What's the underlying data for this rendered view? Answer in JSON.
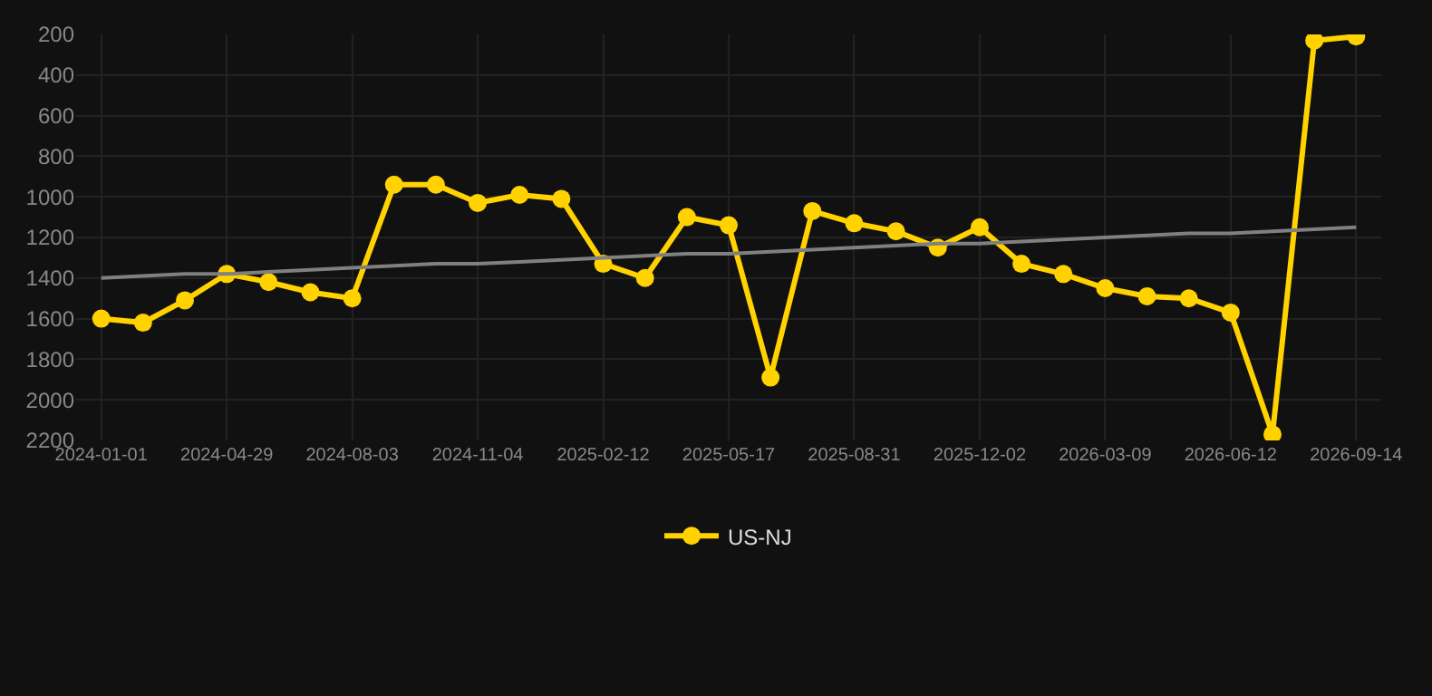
{
  "chart_data": {
    "type": "line",
    "categories": [
      "2024-01-01",
      null,
      null,
      "2024-04-29",
      null,
      null,
      "2024-08-03",
      null,
      null,
      "2024-11-04",
      null,
      null,
      "2025-02-12",
      null,
      null,
      "2025-05-17",
      null,
      null,
      "2025-08-31",
      null,
      null,
      "2025-12-02",
      null,
      null,
      "2026-03-09",
      null,
      null,
      "2026-06-12",
      null,
      null,
      "2026-09-14"
    ],
    "series": [
      {
        "name": "US-NJ",
        "color": "#ffd200",
        "values": [
          1600,
          1620,
          1510,
          1380,
          1420,
          1470,
          1500,
          940,
          940,
          1030,
          990,
          1010,
          1330,
          1400,
          1100,
          1140,
          1890,
          1070,
          1130,
          1170,
          1250,
          1150,
          1330,
          1380,
          1450,
          1490,
          1500,
          1570,
          2170,
          230,
          210
        ]
      },
      {
        "color": "#808080",
        "values": [
          1400,
          1390,
          1380,
          1380,
          1370,
          1360,
          1350,
          1340,
          1330,
          1330,
          1320,
          1310,
          1300,
          1290,
          1280,
          1280,
          1270,
          1260,
          1250,
          1240,
          1230,
          1230,
          1220,
          1210,
          1200,
          1190,
          1180,
          1180,
          1170,
          1160,
          1150
        ],
        "marker": "none"
      }
    ],
    "ylim": [
      2200,
      200
    ],
    "yticks": [
      200,
      400,
      600,
      800,
      1000,
      1200,
      1400,
      1600,
      1800,
      2000,
      2200
    ],
    "grid": true,
    "legend": "bottom",
    "marker": "circle",
    "line_style": "solid"
  }
}
